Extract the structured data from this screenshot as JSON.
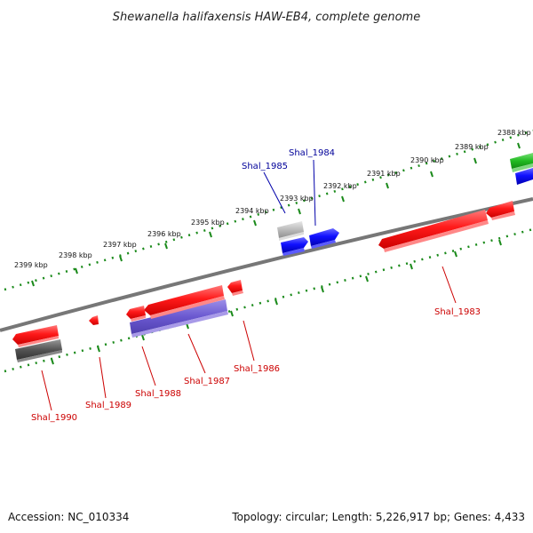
{
  "title": "Shewanella halifaxensis HAW-EB4, complete genome",
  "footer": {
    "accession": "Accession: NC_010334",
    "topology": "Topology: circular; Length: 5,226,917 bp; Genes: 4,433"
  },
  "ticks": [
    "2388 kbp",
    "2389 kbp",
    "2390 kbp",
    "2391 kbp",
    "2392 kbp",
    "2393 kbp",
    "2394 kbp",
    "2395 kbp",
    "2396 kbp",
    "2397 kbp",
    "2398 kbp",
    "2399 kbp"
  ],
  "genes": [
    {
      "name": "Shal_1983",
      "strand": "reverse",
      "color": "#ff0000"
    },
    {
      "name": "Shal_1984",
      "strand": "forward",
      "color": "#0000ff"
    },
    {
      "name": "Shal_1985",
      "strand": "forward",
      "color": "#0000ff"
    },
    {
      "name": "Shal_1986",
      "strand": "reverse",
      "color": "#ff0000"
    },
    {
      "name": "Shal_1987",
      "strand": "reverse",
      "color": "#6a5acd"
    },
    {
      "name": "Shal_1988",
      "strand": "reverse",
      "color": "#ff0000"
    },
    {
      "name": "Shal_1989",
      "strand": "reverse",
      "color": "#ff0000"
    },
    {
      "name": "Shal_1990",
      "strand": "reverse",
      "color": "#606060"
    }
  ],
  "colors": {
    "backbone": "#808080",
    "tick_marks": "#008000",
    "reverse_label": "#cc0000",
    "forward_label": "#000099",
    "green_feature": "#22bb22",
    "gray_feature": "#aaaaaa"
  }
}
